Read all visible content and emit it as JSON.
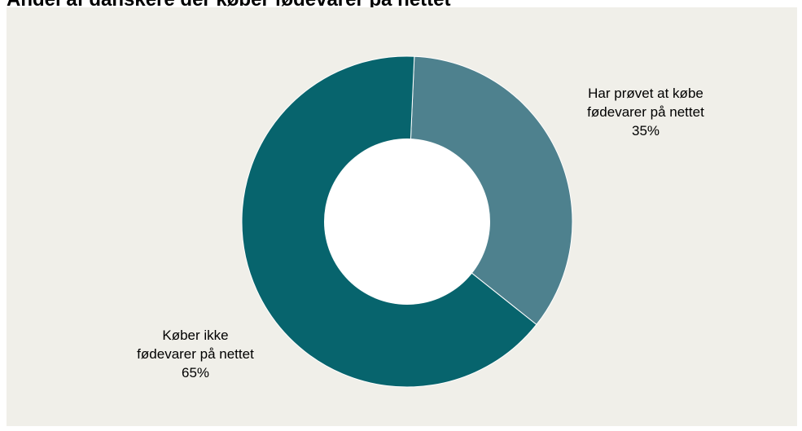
{
  "chart_data": {
    "type": "pie",
    "title": "Andel af danskere der køber fødevarer på nettet",
    "donut": true,
    "slices": [
      {
        "label_lines": [
          "Har prøvet at købe",
          "fødevarer på nettet"
        ],
        "value": 35,
        "value_label": "35%",
        "color": "#4e818e"
      },
      {
        "label_lines": [
          "Køber ikke",
          "fødevarer på nettet"
        ],
        "value": 65,
        "value_label": "65%",
        "color": "#07646d"
      }
    ],
    "background_color": "#f0efe9",
    "hole_color": "#ffffff"
  }
}
